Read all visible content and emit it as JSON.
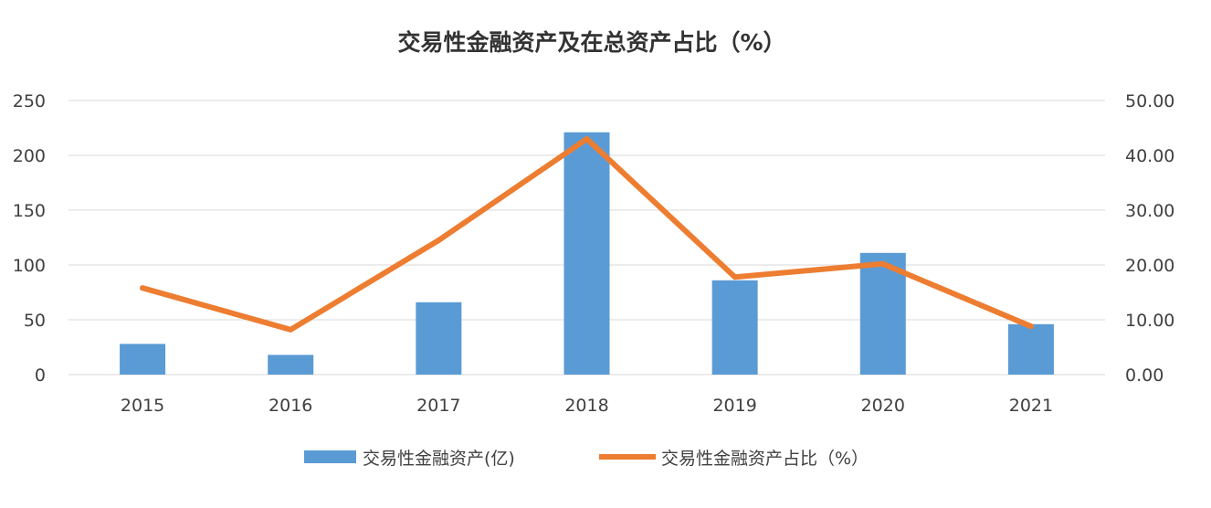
{
  "chart_data": {
    "type": "bar",
    "title": "交易性金融资产及在总资产占比（%）",
    "categories": [
      "2015",
      "2016",
      "2017",
      "2018",
      "2019",
      "2020",
      "2021"
    ],
    "series": [
      {
        "name": "交易性金融资产(亿)",
        "type": "bar",
        "axis": "left",
        "color": "#5b9bd5",
        "values": [
          28,
          18,
          66,
          221,
          86,
          111,
          46
        ]
      },
      {
        "name": "交易性金融资产占比（%）",
        "type": "line",
        "axis": "right",
        "color": "#ed7d31",
        "values": [
          15.8,
          8.2,
          24.5,
          43.0,
          17.8,
          20.2,
          8.8
        ]
      }
    ],
    "y_left": {
      "ylim": [
        0,
        250
      ],
      "ticks": [
        "0",
        "50",
        "100",
        "150",
        "200",
        "250"
      ]
    },
    "y_right": {
      "ylim": [
        0,
        50
      ],
      "ticks": [
        "0.00",
        "10.00",
        "20.00",
        "30.00",
        "40.00",
        "50.00"
      ]
    },
    "grid": true,
    "legend_position": "bottom"
  }
}
